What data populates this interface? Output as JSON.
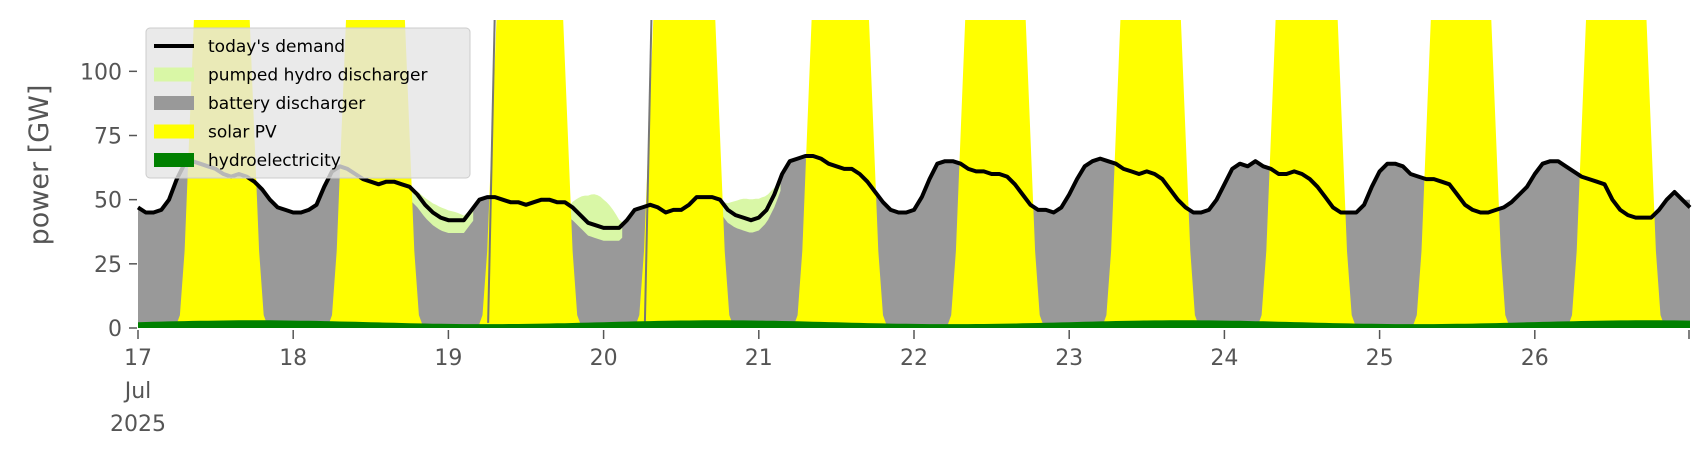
{
  "chart_data": {
    "type": "area",
    "ylabel": "power [GW]",
    "ylim": [
      0,
      120
    ],
    "y_ticks": [
      0,
      25,
      50,
      75,
      100
    ],
    "x_range_days": [
      "2025-07-17",
      "2025-07-27"
    ],
    "x_tick_labels": [
      "17",
      "18",
      "19",
      "20",
      "21",
      "22",
      "23",
      "24",
      "25",
      "26"
    ],
    "x_first_tick_sub": [
      "Jul",
      "2025"
    ],
    "legend_position": "top-left",
    "grid": false,
    "colors": {
      "demand": "#000000",
      "pumped_hydro": "#d9f7a6",
      "battery": "#999999",
      "solar": "#ffff00",
      "hydro": "#008000",
      "axis_text": "#555555"
    },
    "legend": [
      {
        "key": "demand",
        "label": "today's demand",
        "kind": "line"
      },
      {
        "key": "pumped_hydro",
        "label": "pumped hydro discharger",
        "kind": "patch"
      },
      {
        "key": "battery",
        "label": "battery discharger",
        "kind": "patch"
      },
      {
        "key": "solar",
        "label": "solar PV",
        "kind": "patch"
      },
      {
        "key": "hydro",
        "label": "hydroelectricity",
        "kind": "patch"
      }
    ],
    "days": [
      {
        "date": "2025-07-17",
        "solar_start": 0.3,
        "solar_end": 0.78,
        "solar_peak": 200,
        "pumped_hydro_peak": 0
      },
      {
        "date": "2025-07-18",
        "solar_start": 0.28,
        "solar_end": 0.78,
        "solar_peak": 200,
        "pumped_hydro_peak": 4
      },
      {
        "date": "2025-07-19",
        "solar_start": 0.25,
        "solar_end": 0.8,
        "solar_peak": 220,
        "pumped_hydro_peak": 12
      },
      {
        "date": "2025-07-20",
        "solar_start": 0.26,
        "solar_end": 0.78,
        "solar_peak": 220,
        "pumped_hydro_peak": 8
      },
      {
        "date": "2025-07-21",
        "solar_start": 0.28,
        "solar_end": 0.77,
        "solar_peak": 200,
        "pumped_hydro_peak": 0
      },
      {
        "date": "2025-07-22",
        "solar_start": 0.27,
        "solar_end": 0.78,
        "solar_peak": 200,
        "pumped_hydro_peak": 0
      },
      {
        "date": "2025-07-23",
        "solar_start": 0.27,
        "solar_end": 0.78,
        "solar_peak": 200,
        "pumped_hydro_peak": 0
      },
      {
        "date": "2025-07-24",
        "solar_start": 0.27,
        "solar_end": 0.79,
        "solar_peak": 200,
        "pumped_hydro_peak": 0
      },
      {
        "date": "2025-07-25",
        "solar_start": 0.27,
        "solar_end": 0.78,
        "solar_peak": 200,
        "pumped_hydro_peak": 0
      },
      {
        "date": "2025-07-26",
        "solar_start": 0.27,
        "solar_end": 0.78,
        "solar_peak": 200,
        "pumped_hydro_peak": 0
      }
    ],
    "hydro_gw_range": [
      1.5,
      3.0
    ],
    "demand_series": {
      "x_days": [
        0,
        0.05,
        0.1,
        0.15,
        0.2,
        0.25,
        0.3,
        0.35,
        0.4,
        0.45,
        0.5,
        0.55,
        0.6,
        0.65,
        0.7,
        0.75,
        0.8,
        0.85,
        0.9,
        0.95,
        1,
        1.05,
        1.1,
        1.15,
        1.2,
        1.25,
        1.3,
        1.35,
        1.4,
        1.45,
        1.5,
        1.55,
        1.6,
        1.65,
        1.7,
        1.75,
        1.8,
        1.85,
        1.9,
        1.95,
        2,
        2.05,
        2.1,
        2.15,
        2.2,
        2.25,
        2.3,
        2.35,
        2.4,
        2.45,
        2.5,
        2.55,
        2.6,
        2.65,
        2.7,
        2.75,
        2.8,
        2.85,
        2.9,
        2.95,
        3,
        3.05,
        3.1,
        3.15,
        3.2,
        3.25,
        3.3,
        3.35,
        3.4,
        3.45,
        3.5,
        3.55,
        3.6,
        3.65,
        3.7,
        3.75,
        3.8,
        3.85,
        3.9,
        3.95,
        4,
        4.05,
        4.1,
        4.15,
        4.2,
        4.25,
        4.3,
        4.35,
        4.4,
        4.45,
        4.5,
        4.55,
        4.6,
        4.65,
        4.7,
        4.75,
        4.8,
        4.85,
        4.9,
        4.95,
        5,
        5.05,
        5.1,
        5.15,
        5.2,
        5.25,
        5.3,
        5.35,
        5.4,
        5.45,
        5.5,
        5.55,
        5.6,
        5.65,
        5.7,
        5.75,
        5.8,
        5.85,
        5.9,
        5.95,
        6,
        6.05,
        6.1,
        6.15,
        6.2,
        6.25,
        6.3,
        6.35,
        6.4,
        6.45,
        6.5,
        6.55,
        6.6,
        6.65,
        6.7,
        6.75,
        6.8,
        6.85,
        6.9,
        6.95,
        7,
        7.05,
        7.1,
        7.15,
        7.2,
        7.25,
        7.3,
        7.35,
        7.4,
        7.45,
        7.5,
        7.55,
        7.6,
        7.65,
        7.7,
        7.75,
        7.8,
        7.85,
        7.9,
        7.95,
        8,
        8.05,
        8.1,
        8.15,
        8.2,
        8.25,
        8.3,
        8.35,
        8.4,
        8.45,
        8.5,
        8.55,
        8.6,
        8.65,
        8.7,
        8.75,
        8.8,
        8.85,
        8.9,
        8.95,
        9,
        9.05,
        9.1,
        9.15,
        9.2,
        9.25,
        9.3,
        9.35,
        9.4,
        9.45,
        9.5,
        9.55,
        9.6,
        9.65,
        9.7,
        9.75,
        9.8,
        9.85,
        9.9,
        9.95
      ],
      "demand_gw": [
        47,
        45,
        45,
        46,
        50,
        58,
        64,
        65,
        64,
        63,
        62,
        60,
        59,
        60,
        59,
        57,
        54,
        50,
        47,
        46,
        45,
        45,
        46,
        48,
        55,
        61,
        63,
        62,
        60,
        58,
        57,
        56,
        57,
        57,
        56,
        55,
        52,
        48,
        45,
        43,
        42,
        42,
        42,
        46,
        50,
        51,
        51,
        50,
        49,
        49,
        48,
        49,
        50,
        50,
        49,
        49,
        47,
        44,
        41,
        40,
        39,
        39,
        39,
        42,
        46,
        47,
        48,
        47,
        45,
        46,
        46,
        48,
        51,
        51,
        51,
        50,
        46,
        44,
        43,
        42,
        43,
        46,
        52,
        60,
        65,
        66,
        67,
        67,
        66,
        64,
        63,
        62,
        62,
        60,
        57,
        53,
        49,
        46,
        45,
        45,
        46,
        51,
        58,
        64,
        65,
        65,
        64,
        62,
        61,
        61,
        60,
        60,
        59,
        56,
        52,
        48,
        46,
        46,
        45,
        47,
        52,
        58,
        63,
        65,
        66,
        65,
        64,
        62,
        61,
        60,
        61,
        60,
        58,
        54,
        50,
        47,
        45,
        45,
        46,
        50,
        56,
        62,
        64,
        63,
        65,
        63,
        62,
        60,
        60,
        61,
        60,
        58,
        55,
        51,
        47,
        45,
        45,
        45,
        48,
        55,
        61,
        64,
        64,
        63,
        60,
        59,
        58,
        58,
        57,
        56,
        52,
        48,
        46,
        45,
        45,
        46,
        47,
        49,
        52,
        55,
        60,
        64,
        65,
        65,
        63,
        61,
        59,
        58,
        57,
        56,
        50,
        46,
        44,
        43,
        43,
        43,
        46,
        50,
        53,
        50
      ]
    }
  }
}
